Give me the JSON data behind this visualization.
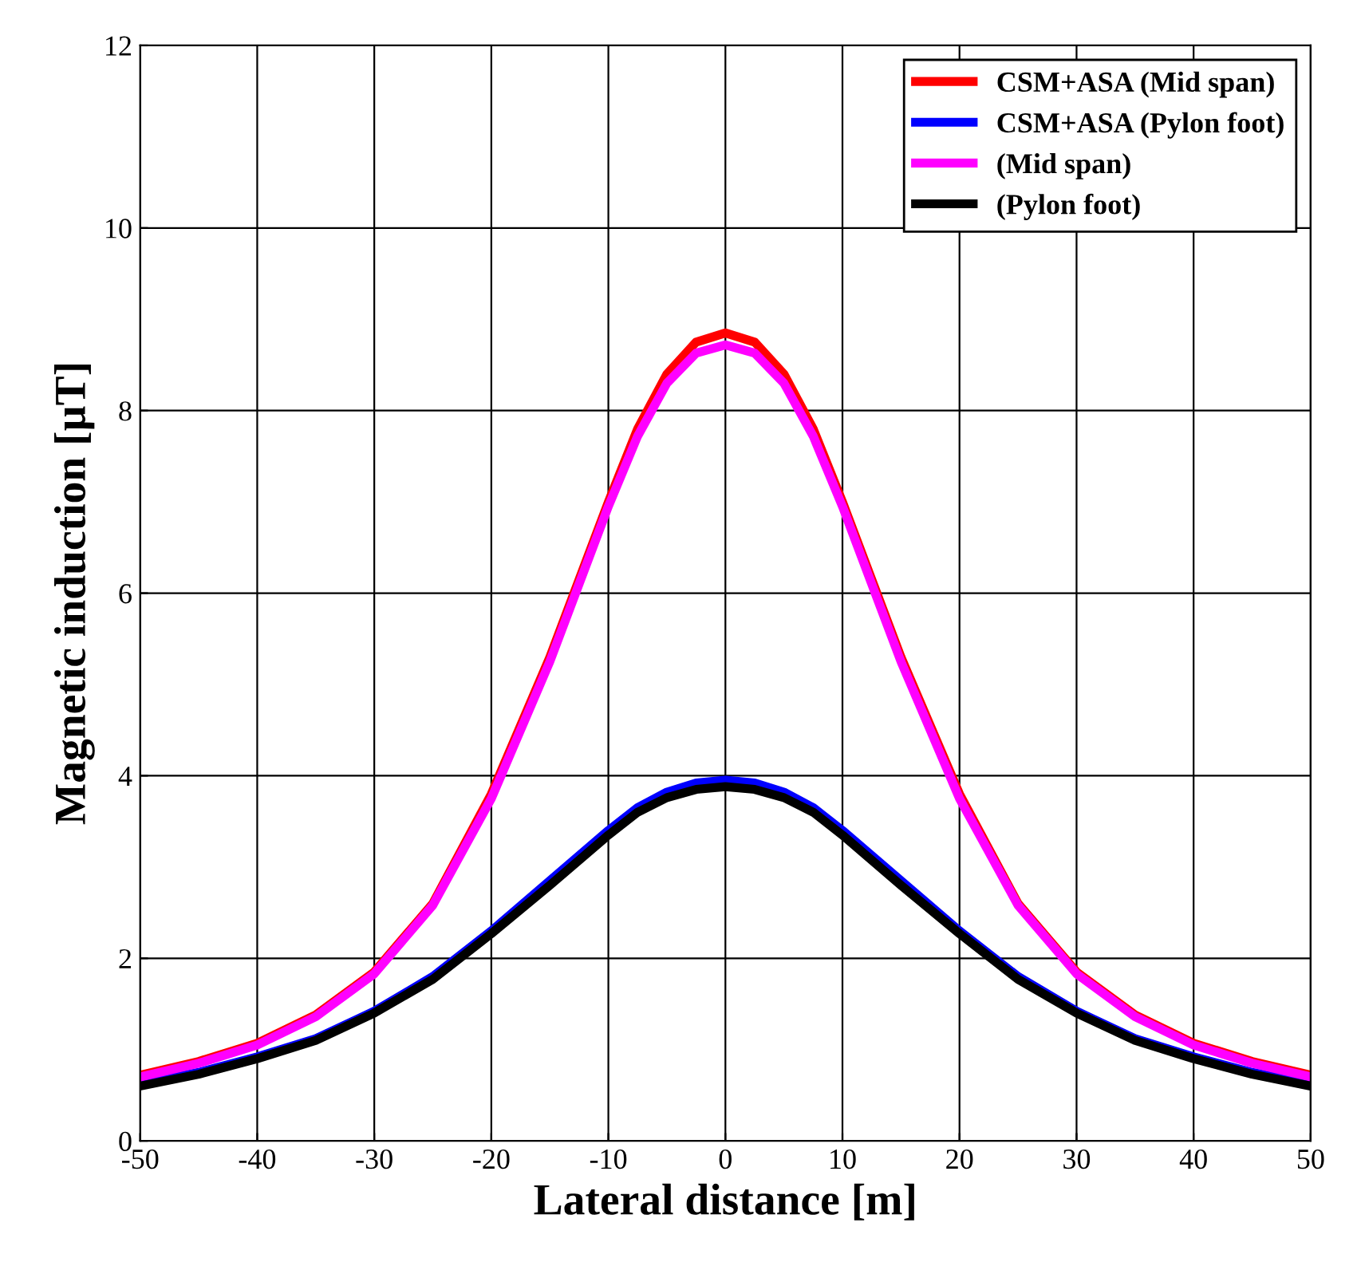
{
  "chart_data": {
    "type": "line",
    "xlabel": "Lateral distance [m]",
    "ylabel": "Magnetic induction [µT]",
    "xlim": [
      -50,
      50
    ],
    "xticks": [
      -50,
      -40,
      -30,
      -20,
      -10,
      0,
      10,
      20,
      30,
      40,
      50
    ],
    "ylim": [
      0,
      12
    ],
    "yticks": [
      0,
      2,
      4,
      6,
      8,
      10,
      12
    ],
    "grid": true,
    "legend": "top right",
    "marker": "none",
    "line_style": "solid",
    "x": [
      -50,
      -45,
      -40,
      -35,
      -30,
      -25,
      -20,
      -15,
      -10,
      -7.5,
      -5,
      -2.5,
      0,
      2.5,
      5,
      7.5,
      10,
      15,
      20,
      25,
      30,
      35,
      40,
      45,
      50
    ],
    "series": [
      {
        "name": "CSM+ASA (Mid span)",
        "color": "#ff0000",
        "values": [
          0.72,
          0.87,
          1.07,
          1.38,
          1.85,
          2.6,
          3.8,
          5.3,
          7.0,
          7.8,
          8.4,
          8.75,
          8.85,
          8.75,
          8.4,
          7.8,
          7.0,
          5.3,
          3.8,
          2.6,
          1.85,
          1.38,
          1.07,
          0.87,
          0.72
        ]
      },
      {
        "name": "CSM+ASA (Pylon foot)",
        "color": "#0000ff",
        "values": [
          0.62,
          0.75,
          0.92,
          1.12,
          1.42,
          1.8,
          2.3,
          2.85,
          3.4,
          3.65,
          3.82,
          3.92,
          3.95,
          3.92,
          3.82,
          3.65,
          3.4,
          2.85,
          2.3,
          1.8,
          1.42,
          1.12,
          0.92,
          0.75,
          0.62
        ]
      },
      {
        "name": "(Mid span)",
        "color": "#ff00ff",
        "values": [
          0.7,
          0.85,
          1.05,
          1.36,
          1.83,
          2.58,
          3.75,
          5.25,
          6.95,
          7.72,
          8.3,
          8.63,
          8.72,
          8.63,
          8.3,
          7.72,
          6.95,
          5.25,
          3.75,
          2.58,
          1.83,
          1.36,
          1.05,
          0.85,
          0.7
        ]
      },
      {
        "name": "(Pylon foot)",
        "color": "#000000",
        "values": [
          0.6,
          0.73,
          0.9,
          1.1,
          1.4,
          1.77,
          2.27,
          2.8,
          3.35,
          3.6,
          3.76,
          3.85,
          3.88,
          3.85,
          3.76,
          3.6,
          3.35,
          2.8,
          2.27,
          1.77,
          1.4,
          1.1,
          0.9,
          0.73,
          0.6
        ]
      }
    ]
  }
}
